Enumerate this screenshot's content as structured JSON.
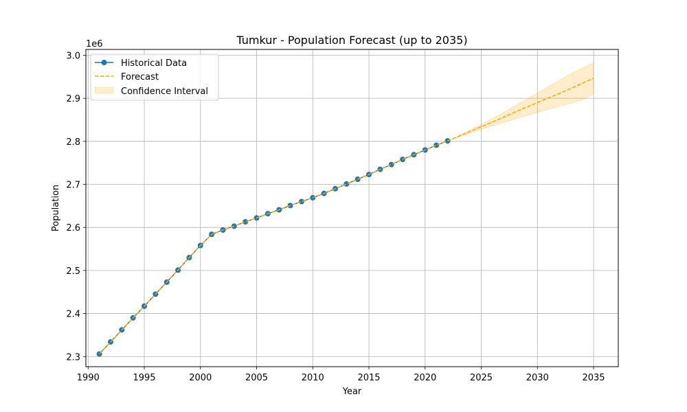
{
  "chart_data": {
    "type": "line",
    "title": "Tumkur - Population Forecast (up to 2035)",
    "xlabel": "Year",
    "ylabel": "Population",
    "y_offset_label": "1e6",
    "xlim": [
      1989.8,
      2037.2
    ],
    "ylim": [
      2.2765,
      3.0135
    ],
    "y_scale": 1000000,
    "x_ticks": [
      1990,
      1995,
      2000,
      2005,
      2010,
      2015,
      2020,
      2025,
      2030,
      2035
    ],
    "y_ticks": [
      2.3,
      2.4,
      2.5,
      2.6,
      2.7,
      2.8,
      2.9,
      3.0
    ],
    "y_tick_labels": [
      "2.3",
      "2.4",
      "2.5",
      "2.6",
      "2.7",
      "2.8",
      "2.9",
      "3.0"
    ],
    "grid": true,
    "legend_position": "top-left",
    "series": [
      {
        "name": "Historical Data",
        "color": "#1f77b4",
        "style": "solid-with-markers",
        "x": [
          1991,
          1992,
          1993,
          1994,
          1995,
          1996,
          1997,
          1998,
          1999,
          2000,
          2001,
          2002,
          2003,
          2004,
          2005,
          2006,
          2007,
          2008,
          2009,
          2010,
          2011,
          2012,
          2013,
          2014,
          2015,
          2016,
          2017,
          2018,
          2019,
          2020,
          2021,
          2022
        ],
        "y": [
          2.306,
          2.334,
          2.362,
          2.39,
          2.417,
          2.445,
          2.473,
          2.501,
          2.53,
          2.558,
          2.584,
          2.594,
          2.603,
          2.613,
          2.622,
          2.632,
          2.641,
          2.651,
          2.66,
          2.669,
          2.679,
          2.69,
          2.701,
          2.712,
          2.723,
          2.735,
          2.746,
          2.758,
          2.769,
          2.78,
          2.791,
          2.801
        ]
      },
      {
        "name": "Forecast",
        "color": "#ffa500",
        "style": "dashed",
        "x": [
          1991,
          1992,
          1993,
          1994,
          1995,
          1996,
          1997,
          1998,
          1999,
          2000,
          2001,
          2002,
          2003,
          2004,
          2005,
          2006,
          2007,
          2008,
          2009,
          2010,
          2011,
          2012,
          2013,
          2014,
          2015,
          2016,
          2017,
          2018,
          2019,
          2020,
          2021,
          2022,
          2023,
          2024,
          2025,
          2026,
          2027,
          2028,
          2029,
          2030,
          2031,
          2032,
          2033,
          2034,
          2035
        ],
        "y": [
          2.306,
          2.334,
          2.362,
          2.39,
          2.417,
          2.445,
          2.473,
          2.501,
          2.53,
          2.558,
          2.584,
          2.594,
          2.603,
          2.613,
          2.622,
          2.632,
          2.641,
          2.651,
          2.66,
          2.669,
          2.679,
          2.69,
          2.701,
          2.712,
          2.723,
          2.735,
          2.746,
          2.758,
          2.769,
          2.78,
          2.791,
          2.801,
          2.812,
          2.823,
          2.834,
          2.845,
          2.856,
          2.868,
          2.879,
          2.89,
          2.901,
          2.912,
          2.923,
          2.935,
          2.947
        ]
      }
    ],
    "confidence_interval": {
      "name": "Confidence Interval",
      "color": "#ffa500",
      "x": [
        2022,
        2023,
        2024,
        2025,
        2026,
        2027,
        2028,
        2029,
        2030,
        2031,
        2032,
        2033,
        2034,
        2035
      ],
      "lower": [
        2.801,
        2.81,
        2.819,
        2.828,
        2.836,
        2.844,
        2.852,
        2.86,
        2.867,
        2.875,
        2.882,
        2.889,
        2.896,
        2.91
      ],
      "upper": [
        2.801,
        2.813,
        2.826,
        2.839,
        2.853,
        2.867,
        2.882,
        2.897,
        2.912,
        2.927,
        2.942,
        2.957,
        2.97,
        2.982
      ]
    }
  }
}
